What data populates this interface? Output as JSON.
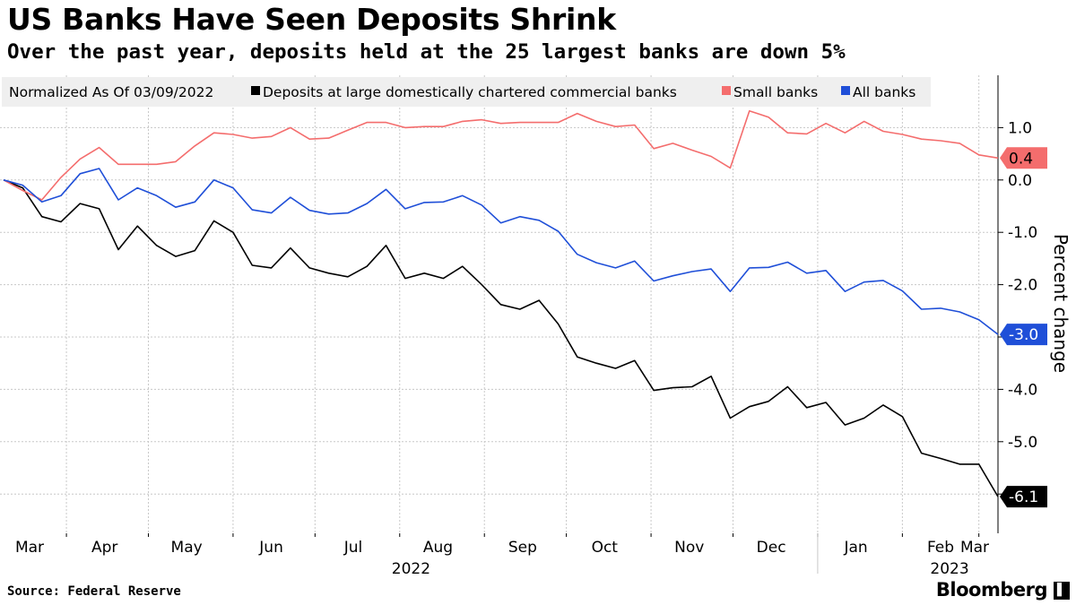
{
  "title": "US Banks Have Seen Deposits Shrink",
  "subtitle": "Over the past year, deposits held at the 25 largest banks are down 5%",
  "source": "Source: Federal Reserve",
  "brand": "Bloomberg",
  "brand_mark": "▌",
  "chart_data": {
    "type": "line",
    "title": "US Banks Have Seen Deposits Shrink",
    "subtitle": "Over the past year, deposits held at the 25 largest banks are down 5%",
    "legend_title": "Normalized As Of 03/09/2022",
    "legend_position": "top",
    "ylabel": "Percent change",
    "ylim": [
      -6.75,
      2.0
    ],
    "y_ticks": [
      -6.0,
      -5.0,
      -4.0,
      -3.0,
      -2.0,
      -1.0,
      0.0,
      1.0
    ],
    "y_tick_labels": [
      "",
      "-5.0",
      "-4.0",
      "",
      "-2.0",
      "-1.0",
      "0.0",
      "1.0"
    ],
    "grid": true,
    "x_dates": [
      "2022-03-09",
      "2022-03-16",
      "2022-03-23",
      "2022-03-30",
      "2022-04-06",
      "2022-04-13",
      "2022-04-20",
      "2022-04-27",
      "2022-05-04",
      "2022-05-11",
      "2022-05-18",
      "2022-05-25",
      "2022-06-01",
      "2022-06-08",
      "2022-06-15",
      "2022-06-22",
      "2022-06-29",
      "2022-07-06",
      "2022-07-13",
      "2022-07-20",
      "2022-07-27",
      "2022-08-03",
      "2022-08-10",
      "2022-08-17",
      "2022-08-24",
      "2022-08-31",
      "2022-09-07",
      "2022-09-14",
      "2022-09-21",
      "2022-09-28",
      "2022-10-05",
      "2022-10-12",
      "2022-10-19",
      "2022-10-26",
      "2022-11-02",
      "2022-11-09",
      "2022-11-16",
      "2022-11-23",
      "2022-11-30",
      "2022-12-07",
      "2022-12-14",
      "2022-12-21",
      "2022-12-28",
      "2023-01-04",
      "2023-01-11",
      "2023-01-18",
      "2023-01-25",
      "2023-02-01",
      "2023-02-08",
      "2023-02-15",
      "2023-02-22",
      "2023-03-01",
      "2023-03-08"
    ],
    "x_month_labels": [
      {
        "date": "2022-03-15",
        "label": "Mar"
      },
      {
        "date": "2022-04-15",
        "label": "Apr"
      },
      {
        "date": "2022-05-15",
        "label": "May"
      },
      {
        "date": "2022-06-15",
        "label": "Jun"
      },
      {
        "date": "2022-07-15",
        "label": "Jul"
      },
      {
        "date": "2022-08-15",
        "label": "Aug"
      },
      {
        "date": "2022-09-15",
        "label": "Sep"
      },
      {
        "date": "2022-10-15",
        "label": "Oct"
      },
      {
        "date": "2022-11-15",
        "label": "Nov"
      },
      {
        "date": "2022-12-15",
        "label": "Dec"
      },
      {
        "date": "2023-01-15",
        "label": "Jan"
      },
      {
        "date": "2023-02-15",
        "label": "Feb"
      },
      {
        "date": "2023-03-15",
        "label": "Mar"
      }
    ],
    "x_year_labels": [
      {
        "date": "2022-08-15",
        "label": "2022"
      },
      {
        "date": "2023-02-15",
        "label": "2023"
      }
    ],
    "x_domain": [
      "2022-03-09",
      "2023-03-08"
    ],
    "series": [
      {
        "name": "Deposits at large domestically chartered commercial banks",
        "color": "#000000",
        "end_label": "-6.1",
        "values": [
          0.0,
          -0.15,
          -0.7,
          -0.8,
          -0.45,
          -0.55,
          -1.33,
          -0.88,
          -1.25,
          -1.46,
          -1.35,
          -0.78,
          -1.0,
          -1.63,
          -1.68,
          -1.3,
          -1.68,
          -1.78,
          -1.85,
          -1.65,
          -1.25,
          -1.88,
          -1.78,
          -1.88,
          -1.65,
          -2.0,
          -2.38,
          -2.47,
          -2.3,
          -2.75,
          -3.38,
          -3.5,
          -3.6,
          -3.45,
          -4.02,
          -3.97,
          -3.95,
          -3.75,
          -4.55,
          -4.33,
          -4.23,
          -3.95,
          -4.35,
          -4.25,
          -4.68,
          -4.55,
          -4.3,
          -4.52,
          -5.22,
          -5.32,
          -5.43,
          -5.43,
          -6.05
        ]
      },
      {
        "name": "Small banks",
        "color": "#f46d6d",
        "end_label": "0.4",
        "values": [
          0.0,
          -0.2,
          -0.38,
          0.05,
          0.4,
          0.62,
          0.3,
          0.3,
          0.3,
          0.35,
          0.65,
          0.9,
          0.87,
          0.8,
          0.83,
          1.0,
          0.78,
          0.8,
          0.95,
          1.1,
          1.1,
          1.0,
          1.02,
          1.02,
          1.12,
          1.15,
          1.08,
          1.1,
          1.1,
          1.1,
          1.27,
          1.12,
          1.02,
          1.05,
          0.6,
          0.7,
          0.57,
          0.45,
          0.23,
          1.32,
          1.2,
          0.9,
          0.88,
          1.08,
          0.9,
          1.12,
          0.93,
          0.87,
          0.78,
          0.75,
          0.7,
          0.48,
          0.42
        ]
      },
      {
        "name": "All banks",
        "color": "#1f4fd8",
        "end_label": "-3.0",
        "values": [
          0.0,
          -0.1,
          -0.42,
          -0.3,
          0.12,
          0.22,
          -0.38,
          -0.15,
          -0.3,
          -0.52,
          -0.42,
          0.0,
          -0.15,
          -0.57,
          -0.63,
          -0.33,
          -0.58,
          -0.65,
          -0.63,
          -0.45,
          -0.18,
          -0.55,
          -0.43,
          -0.42,
          -0.3,
          -0.48,
          -0.82,
          -0.7,
          -0.77,
          -0.98,
          -1.42,
          -1.58,
          -1.68,
          -1.55,
          -1.93,
          -1.83,
          -1.75,
          -1.7,
          -2.13,
          -1.68,
          -1.67,
          -1.57,
          -1.78,
          -1.73,
          -2.13,
          -1.95,
          -1.92,
          -2.12,
          -2.47,
          -2.45,
          -2.52,
          -2.67,
          -2.95
        ]
      }
    ]
  }
}
